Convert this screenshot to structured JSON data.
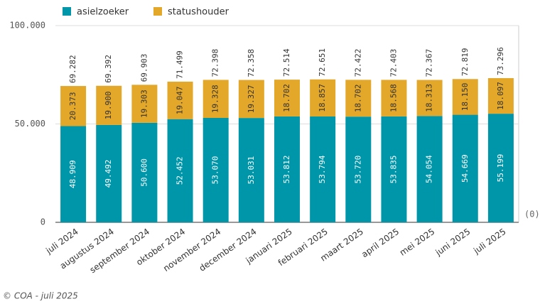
{
  "chart_data": {
    "type": "stacked-bar",
    "categories": [
      "juli 2024",
      "augustus 2024",
      "september 2024",
      "oktober 2024",
      "november 2024",
      "december 2024",
      "januari 2025",
      "februari 2025",
      "maart 2025",
      "april 2025",
      "mei 2025",
      "juni 2025",
      "juli 2025"
    ],
    "series": [
      {
        "name": "asielzoeker",
        "color": "#0096aa",
        "values": [
          48909,
          49492,
          50600,
          52452,
          53070,
          53031,
          53812,
          53794,
          53720,
          53835,
          54054,
          54669,
          55199
        ],
        "value_labels": [
          "48.909",
          "49.492",
          "50.600",
          "52.452",
          "53.070",
          "53.031",
          "53.812",
          "53.794",
          "53.720",
          "53.835",
          "54.054",
          "54.669",
          "55.199"
        ]
      },
      {
        "name": "statushouder",
        "color": "#e3a72a",
        "values": [
          20373,
          19900,
          19303,
          19047,
          19328,
          19327,
          18702,
          18857,
          18702,
          18568,
          18313,
          18150,
          18097
        ],
        "value_labels": [
          "20.373",
          "19.900",
          "19.303",
          "19.047",
          "19.328",
          "19.327",
          "18.702",
          "18.857",
          "18.702",
          "18.568",
          "18.313",
          "18.150",
          "18.097"
        ]
      }
    ],
    "totals": {
      "values": [
        69282,
        69392,
        69903,
        71499,
        72398,
        72358,
        72514,
        72651,
        72422,
        72403,
        72367,
        72819,
        73296
      ],
      "value_labels": [
        "69.282",
        "69.392",
        "69.903",
        "71.499",
        "72.398",
        "72.358",
        "72.514",
        "72.651",
        "72.422",
        "72.403",
        "72.367",
        "72.819",
        "73.296"
      ]
    },
    "ylim": [
      0,
      100000
    ],
    "yticks": [
      0,
      {
        "value": 50000,
        "label": "50.000"
      },
      {
        "value": 100000,
        "label": "100.000"
      }
    ],
    "grid": true,
    "axis_note": "(0)",
    "footer": "© COA - juli 2025"
  }
}
